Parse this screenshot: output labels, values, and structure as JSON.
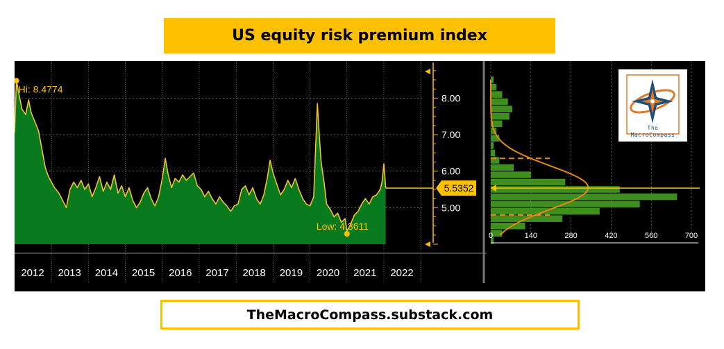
{
  "title": "US equity risk premium index",
  "footer": "TheMacroCompass.substack.com",
  "logo": {
    "line1": "The",
    "line2": "MacroCompass"
  },
  "colors": {
    "background": "#000000",
    "area_fill": "#0a7a1f",
    "line": "#f2c230",
    "accent": "#ffc000",
    "histogram": "#3f8f1f",
    "grid": "#9a9a9a"
  },
  "chart_data": [
    {
      "type": "area",
      "title": "US equity risk premium index",
      "x_tick_labels": [
        "2012",
        "2013",
        "2014",
        "2015",
        "2016",
        "2017",
        "2018",
        "2019",
        "2020",
        "2021",
        "2022"
      ],
      "y_tick_labels": [
        "5.00",
        "6.00",
        "7.00",
        "8.00"
      ],
      "xlim": [
        2012.0,
        2022.9
      ],
      "ylim": [
        4.0,
        8.9
      ],
      "grid": true,
      "annotations": {
        "high_label": "Hi: 8.4774",
        "high": {
          "x": 2012.05,
          "y": 8.4774
        },
        "low_label": "Low: 4.3611",
        "low": {
          "x": 2021.0,
          "y": 4.3611
        },
        "last_label": "5.5352",
        "last_value": 5.5352
      },
      "series": [
        {
          "values": [
            [
              2012.0,
              7.05
            ],
            [
              2012.05,
              8.48
            ],
            [
              2012.12,
              8.1
            ],
            [
              2012.2,
              7.7
            ],
            [
              2012.3,
              7.55
            ],
            [
              2012.38,
              7.95
            ],
            [
              2012.45,
              7.6
            ],
            [
              2012.55,
              7.35
            ],
            [
              2012.65,
              7.1
            ],
            [
              2012.75,
              6.55
            ],
            [
              2012.83,
              6.1
            ],
            [
              2012.92,
              5.85
            ],
            [
              2013.0,
              5.7
            ],
            [
              2013.08,
              5.55
            ],
            [
              2013.2,
              5.4
            ],
            [
              2013.3,
              5.2
            ],
            [
              2013.4,
              5.0
            ],
            [
              2013.5,
              5.5
            ],
            [
              2013.6,
              5.7
            ],
            [
              2013.7,
              5.55
            ],
            [
              2013.8,
              5.75
            ],
            [
              2013.9,
              5.5
            ],
            [
              2014.0,
              5.65
            ],
            [
              2014.1,
              5.3
            ],
            [
              2014.2,
              5.55
            ],
            [
              2014.3,
              5.85
            ],
            [
              2014.4,
              5.45
            ],
            [
              2014.5,
              5.7
            ],
            [
              2014.6,
              5.5
            ],
            [
              2014.7,
              5.9
            ],
            [
              2014.8,
              5.4
            ],
            [
              2014.9,
              5.6
            ],
            [
              2015.0,
              5.3
            ],
            [
              2015.1,
              5.55
            ],
            [
              2015.2,
              5.2
            ],
            [
              2015.3,
              5.0
            ],
            [
              2015.4,
              5.15
            ],
            [
              2015.5,
              5.4
            ],
            [
              2015.6,
              5.55
            ],
            [
              2015.7,
              5.25
            ],
            [
              2015.8,
              5.05
            ],
            [
              2015.9,
              5.3
            ],
            [
              2016.0,
              5.8
            ],
            [
              2016.08,
              6.35
            ],
            [
              2016.15,
              5.95
            ],
            [
              2016.25,
              5.55
            ],
            [
              2016.35,
              5.8
            ],
            [
              2016.45,
              5.7
            ],
            [
              2016.55,
              5.9
            ],
            [
              2016.65,
              5.75
            ],
            [
              2016.75,
              5.85
            ],
            [
              2016.85,
              5.95
            ],
            [
              2016.95,
              5.6
            ],
            [
              2017.05,
              5.5
            ],
            [
              2017.15,
              5.3
            ],
            [
              2017.25,
              5.45
            ],
            [
              2017.35,
              5.25
            ],
            [
              2017.45,
              5.1
            ],
            [
              2017.55,
              5.3
            ],
            [
              2017.65,
              5.15
            ],
            [
              2017.75,
              5.05
            ],
            [
              2017.85,
              4.9
            ],
            [
              2017.95,
              5.05
            ],
            [
              2018.05,
              5.1
            ],
            [
              2018.15,
              5.5
            ],
            [
              2018.25,
              5.6
            ],
            [
              2018.35,
              5.35
            ],
            [
              2018.45,
              5.55
            ],
            [
              2018.55,
              5.25
            ],
            [
              2018.65,
              5.1
            ],
            [
              2018.75,
              5.35
            ],
            [
              2018.85,
              5.85
            ],
            [
              2018.92,
              6.3
            ],
            [
              2019.0,
              5.95
            ],
            [
              2019.1,
              5.65
            ],
            [
              2019.2,
              5.35
            ],
            [
              2019.3,
              5.5
            ],
            [
              2019.4,
              5.75
            ],
            [
              2019.5,
              5.55
            ],
            [
              2019.6,
              5.8
            ],
            [
              2019.7,
              5.5
            ],
            [
              2019.8,
              5.25
            ],
            [
              2019.9,
              5.1
            ],
            [
              2020.0,
              5.05
            ],
            [
              2020.1,
              5.3
            ],
            [
              2020.15,
              6.6
            ],
            [
              2020.2,
              7.85
            ],
            [
              2020.25,
              7.0
            ],
            [
              2020.3,
              6.25
            ],
            [
              2020.38,
              5.7
            ],
            [
              2020.45,
              5.1
            ],
            [
              2020.55,
              4.95
            ],
            [
              2020.65,
              4.75
            ],
            [
              2020.75,
              4.85
            ],
            [
              2020.85,
              4.6
            ],
            [
              2020.95,
              4.7
            ],
            [
              2021.0,
              4.36
            ],
            [
              2021.1,
              4.55
            ],
            [
              2021.2,
              4.8
            ],
            [
              2021.3,
              4.9
            ],
            [
              2021.4,
              5.1
            ],
            [
              2021.5,
              5.25
            ],
            [
              2021.6,
              5.1
            ],
            [
              2021.7,
              5.3
            ],
            [
              2021.8,
              5.35
            ],
            [
              2021.9,
              5.5
            ],
            [
              2021.95,
              5.7
            ],
            [
              2022.0,
              6.2
            ],
            [
              2022.05,
              5.54
            ]
          ]
        }
      ]
    },
    {
      "type": "bar",
      "orientation": "horizontal",
      "x_tick_labels": [
        "0",
        "140",
        "280",
        "420",
        "560",
        "700"
      ],
      "xlim": [
        0,
        700
      ],
      "ylim": [
        4.0,
        8.9
      ],
      "bins": [
        {
          "y": 8.5,
          "count": 10
        },
        {
          "y": 8.3,
          "count": 20
        },
        {
          "y": 8.1,
          "count": 40
        },
        {
          "y": 7.9,
          "count": 60
        },
        {
          "y": 7.7,
          "count": 75
        },
        {
          "y": 7.5,
          "count": 65
        },
        {
          "y": 7.3,
          "count": 40
        },
        {
          "y": 7.1,
          "count": 20
        },
        {
          "y": 6.9,
          "count": 30
        },
        {
          "y": 6.7,
          "count": 10
        },
        {
          "y": 6.5,
          "count": 15
        },
        {
          "y": 6.3,
          "count": 30
        },
        {
          "y": 6.1,
          "count": 80
        },
        {
          "y": 5.9,
          "count": 140
        },
        {
          "y": 5.7,
          "count": 260
        },
        {
          "y": 5.5,
          "count": 450
        },
        {
          "y": 5.3,
          "count": 650
        },
        {
          "y": 5.1,
          "count": 520
        },
        {
          "y": 4.9,
          "count": 380
        },
        {
          "y": 4.7,
          "count": 250
        },
        {
          "y": 4.5,
          "count": 120
        },
        {
          "y": 4.3,
          "count": 40
        },
        {
          "y": 4.1,
          "count": 10
        }
      ],
      "fit": {
        "type": "normal",
        "mean": 5.55,
        "peak_count": 340,
        "sd": 0.6
      },
      "reference_lines": [
        6.35,
        4.8
      ],
      "current_value": 5.5352
    }
  ]
}
